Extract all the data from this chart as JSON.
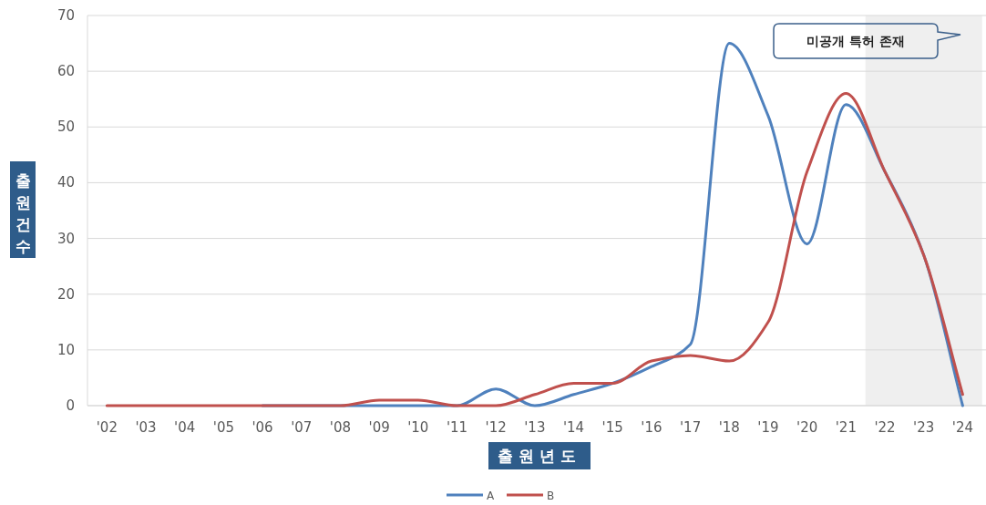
{
  "chart_data": {
    "type": "line",
    "xlabel": "출원년도",
    "ylabel": "출원건수",
    "categories": [
      "'02",
      "'03",
      "'04",
      "'05",
      "'06",
      "'07",
      "'08",
      "'09",
      "'10",
      "'11",
      "'12",
      "'13",
      "'14",
      "'15",
      "'16",
      "'17",
      "'18",
      "'19",
      "'20",
      "'21",
      "'22",
      "'23",
      "'24"
    ],
    "series": [
      {
        "name": "A",
        "color": "#4f81bd",
        "values": [
          null,
          null,
          null,
          null,
          0,
          0,
          0,
          0,
          0,
          0,
          3,
          0,
          2,
          4,
          7,
          11,
          65,
          52,
          29,
          54,
          42,
          27,
          0
        ]
      },
      {
        "name": "B",
        "color": "#c0504d",
        "values": [
          0,
          0,
          0,
          0,
          0,
          0,
          0,
          1,
          1,
          0,
          0,
          2,
          4,
          4,
          8,
          9,
          8,
          15,
          42,
          56,
          42,
          27,
          2
        ]
      }
    ],
    "ylim": [
      0,
      70
    ],
    "yticks": [
      0,
      10,
      20,
      30,
      40,
      50,
      60,
      70
    ],
    "grid": "y",
    "legend": "bottom",
    "marker": "none",
    "line_style": "solid",
    "bands": [
      {
        "axis": "x",
        "from": "'22",
        "to": "'24",
        "color": "#efefef"
      }
    ],
    "annotations": [
      "미공개 특허 존재"
    ]
  }
}
